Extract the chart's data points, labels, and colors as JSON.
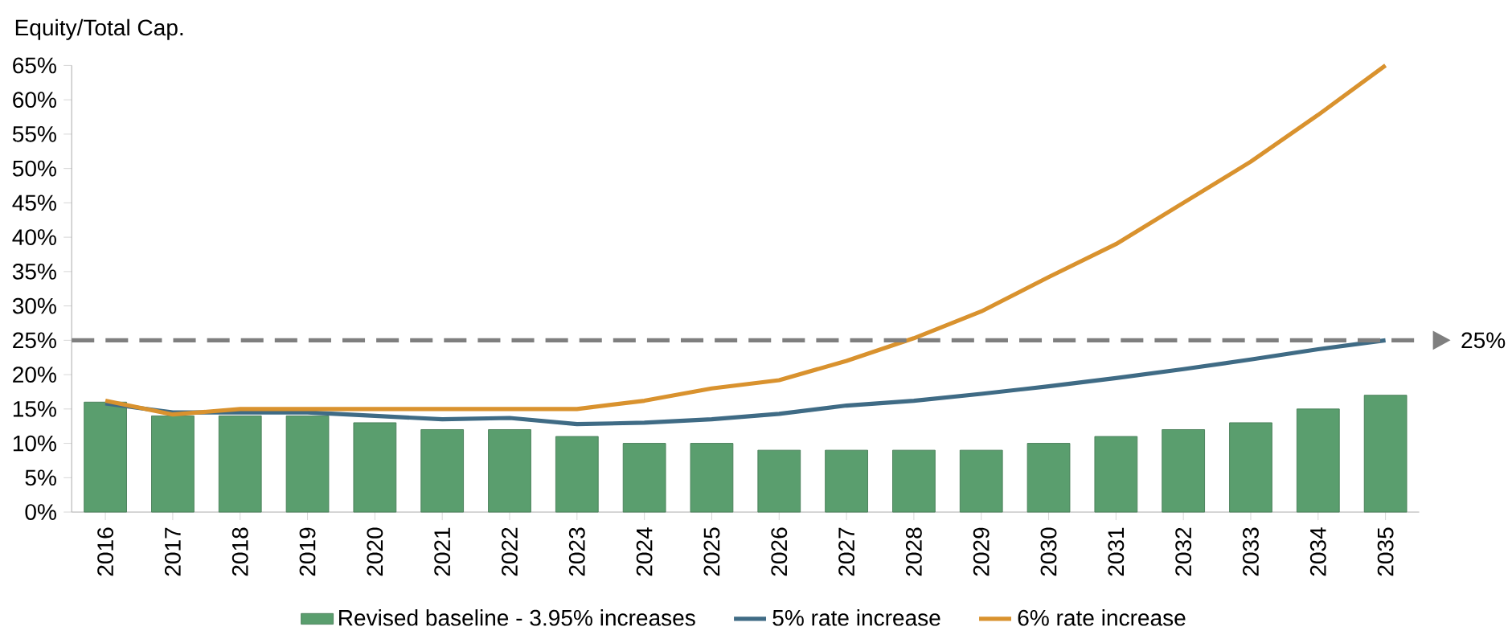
{
  "chart_data": {
    "type": "bar",
    "ylabel": "Equity/Total Cap.",
    "categories": [
      "2016",
      "2017",
      "2018",
      "2019",
      "2020",
      "2021",
      "2022",
      "2023",
      "2024",
      "2025",
      "2026",
      "2027",
      "2028",
      "2029",
      "2030",
      "2031",
      "2032",
      "2033",
      "2034",
      "2035"
    ],
    "series": [
      {
        "name": "Revised baseline - 3.95% increases",
        "color": "#5a9e6e",
        "values": [
          16,
          14,
          14,
          14,
          13,
          12,
          12,
          11,
          10,
          10,
          9,
          9,
          9,
          9,
          10,
          11,
          12,
          13,
          15,
          17
        ]
      },
      {
        "name": "5% rate increase",
        "type": "line",
        "color": "#3f6b85",
        "values": [
          15.8,
          14.5,
          14.5,
          14.5,
          14,
          13.5,
          13.7,
          12.8,
          13,
          13.5,
          14.3,
          15.5,
          16.2,
          17.2,
          18.3,
          19.5,
          20.8,
          22.2,
          23.7,
          25
        ]
      },
      {
        "name": "6% rate increase",
        "type": "line",
        "color": "#d9922e",
        "values": [
          16.2,
          14.2,
          15,
          15,
          15,
          15,
          15,
          15,
          16.2,
          18,
          19.2,
          22,
          25.3,
          29.2,
          34.2,
          39,
          45,
          51,
          57.8,
          65
        ]
      }
    ],
    "ylim": [
      0,
      65
    ],
    "yticks": [
      {
        "value": 0,
        "label": "0%"
      },
      {
        "value": 5,
        "label": "5%"
      },
      {
        "value": 10,
        "label": "10%"
      },
      {
        "value": 15,
        "label": "15%"
      },
      {
        "value": 20,
        "label": "20%"
      },
      {
        "value": 25,
        "label": "25%"
      },
      {
        "value": 30,
        "label": "30%"
      },
      {
        "value": 35,
        "label": "35%"
      },
      {
        "value": 40,
        "label": "40%"
      },
      {
        "value": 45,
        "label": "45%"
      },
      {
        "value": 50,
        "label": "50%"
      },
      {
        "value": 55,
        "label": "55%"
      },
      {
        "value": 60,
        "label": "60%"
      },
      {
        "value": 65,
        "label": "65%"
      }
    ],
    "ref_lines": [
      {
        "axis": "y",
        "value": 25,
        "label": "25%",
        "color": "#7f7f7f",
        "line_style": "dashed"
      }
    ],
    "legend": "bottom",
    "marker": "none"
  }
}
